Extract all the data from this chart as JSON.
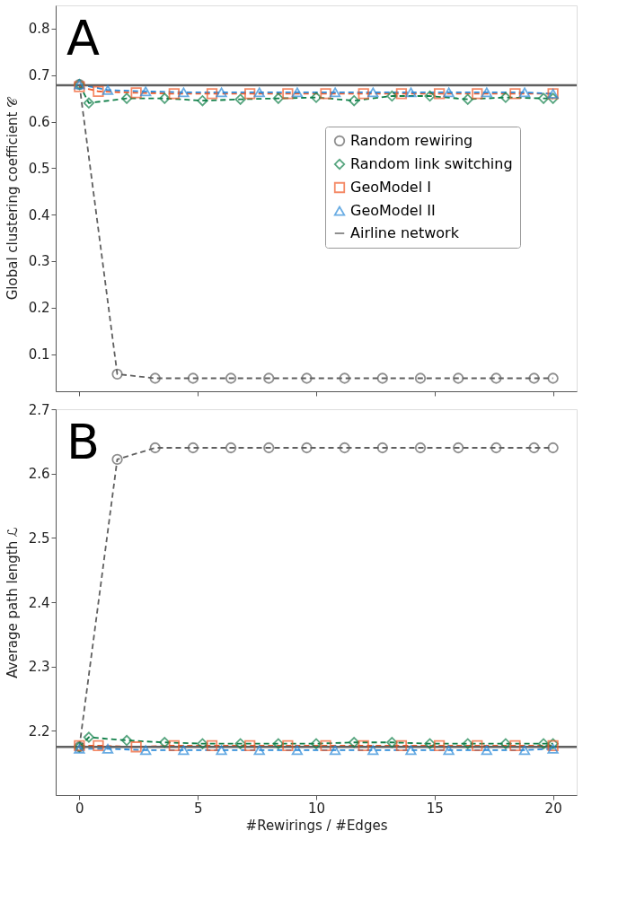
{
  "chart_data": [
    {
      "type": "line",
      "ylabel": "Global clustering coefficient 𝒞",
      "annotations": [
        "A"
      ],
      "xlim": [
        -1,
        21
      ],
      "xticks": [
        0,
        5,
        10,
        15,
        20
      ],
      "ylim": [
        0.02,
        0.85
      ],
      "yticks": [
        0.1,
        0.2,
        0.3,
        0.4,
        0.5,
        0.6,
        0.7,
        0.8
      ],
      "tick_labels": "y",
      "grid": false,
      "legend": "top right",
      "line_style": "dashed",
      "series": [
        {
          "name": "Random rewiring",
          "color": "#606060",
          "marker": "circle",
          "x": [
            0,
            1.6,
            3.2,
            4.8,
            6.4,
            8.0,
            9.6,
            11.2,
            12.8,
            14.4,
            16.0,
            17.6,
            19.2,
            20
          ],
          "values": [
            0.68,
            0.057,
            0.048,
            0.048,
            0.048,
            0.048,
            0.048,
            0.048,
            0.048,
            0.048,
            0.048,
            0.048,
            0.048,
            0.048
          ]
        },
        {
          "name": "Random link switching",
          "color": "#11804a",
          "marker": "diamond",
          "x": [
            0,
            0.4,
            2.0,
            3.6,
            5.2,
            6.8,
            8.4,
            10.0,
            11.6,
            13.2,
            14.8,
            16.4,
            18.0,
            19.6,
            20
          ],
          "values": [
            0.68,
            0.64,
            0.65,
            0.65,
            0.645,
            0.648,
            0.65,
            0.652,
            0.645,
            0.655,
            0.655,
            0.648,
            0.652,
            0.65,
            0.65
          ]
        },
        {
          "name": "GeoModel I",
          "color": "#f05a28",
          "marker": "square",
          "x": [
            0,
            0.8,
            2.4,
            4.0,
            5.6,
            7.2,
            8.8,
            10.4,
            12.0,
            13.6,
            15.2,
            16.8,
            18.4,
            20
          ],
          "values": [
            0.675,
            0.665,
            0.662,
            0.66,
            0.66,
            0.66,
            0.66,
            0.66,
            0.66,
            0.66,
            0.66,
            0.66,
            0.66,
            0.66
          ]
        },
        {
          "name": "GeoModel II",
          "color": "#2b8ad8",
          "marker": "triangle",
          "x": [
            0,
            1.2,
            2.8,
            4.4,
            6.0,
            7.6,
            9.2,
            10.8,
            12.4,
            14.0,
            15.6,
            17.2,
            18.8,
            20
          ],
          "values": [
            0.68,
            0.668,
            0.665,
            0.663,
            0.663,
            0.663,
            0.663,
            0.663,
            0.663,
            0.663,
            0.663,
            0.663,
            0.663,
            0.66
          ]
        }
      ],
      "ref_lines": [
        {
          "axis": "y",
          "value": 0.678,
          "label": "Airline network",
          "color": "#606060"
        }
      ]
    },
    {
      "type": "line",
      "ylabel": "Average path length ℒ",
      "xlabel": "#Rewirings / #Edges",
      "annotations": [
        "B"
      ],
      "xlim": [
        -1,
        21
      ],
      "xticks": [
        0,
        5,
        10,
        15,
        20
      ],
      "ylim": [
        2.1,
        2.7
      ],
      "yticks": [
        2.2,
        2.3,
        2.4,
        2.5,
        2.6,
        2.7
      ],
      "grid": false,
      "legend": false,
      "line_style": "dashed",
      "series": [
        {
          "color": "#606060",
          "marker": "circle",
          "x": [
            0,
            1.6,
            3.2,
            4.8,
            6.4,
            8.0,
            9.6,
            11.2,
            12.8,
            14.4,
            16.0,
            17.6,
            19.2,
            20
          ],
          "values": [
            2.175,
            2.622,
            2.64,
            2.64,
            2.64,
            2.64,
            2.64,
            2.64,
            2.64,
            2.64,
            2.64,
            2.64,
            2.64,
            2.64
          ]
        },
        {
          "color": "#11804a",
          "marker": "diamond",
          "x": [
            0,
            0.4,
            2.0,
            3.6,
            5.2,
            6.8,
            8.4,
            10.0,
            11.6,
            13.2,
            14.8,
            16.4,
            18.0,
            19.6,
            20
          ],
          "values": [
            2.175,
            2.19,
            2.185,
            2.182,
            2.18,
            2.18,
            2.18,
            2.18,
            2.182,
            2.182,
            2.18,
            2.18,
            2.18,
            2.18,
            2.18
          ]
        },
        {
          "color": "#f05a28",
          "marker": "square",
          "x": [
            0,
            0.8,
            2.4,
            4.0,
            5.6,
            7.2,
            8.8,
            10.4,
            12.0,
            13.6,
            15.2,
            16.8,
            18.4,
            20
          ],
          "values": [
            2.177,
            2.177,
            2.175,
            2.177,
            2.177,
            2.177,
            2.177,
            2.177,
            2.177,
            2.177,
            2.177,
            2.177,
            2.177,
            2.177
          ]
        },
        {
          "color": "#2b8ad8",
          "marker": "triangle",
          "x": [
            0,
            1.2,
            2.8,
            4.4,
            6.0,
            7.6,
            9.2,
            10.8,
            12.4,
            14.0,
            15.6,
            17.2,
            18.8,
            20
          ],
          "values": [
            2.172,
            2.172,
            2.17,
            2.17,
            2.17,
            2.17,
            2.17,
            2.17,
            2.17,
            2.17,
            2.17,
            2.17,
            2.17,
            2.172
          ]
        }
      ],
      "ref_lines": [
        {
          "axis": "y",
          "value": 2.175,
          "color": "#606060"
        }
      ]
    }
  ]
}
